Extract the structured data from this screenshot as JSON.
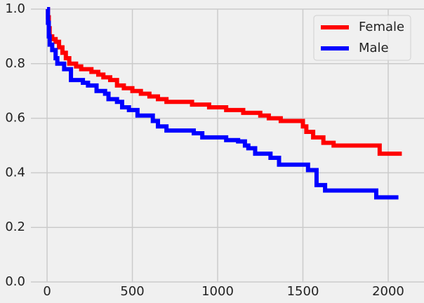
{
  "chart_data": {
    "type": "line",
    "step": "post",
    "legend": "upper right",
    "grid": true,
    "xlim": [
      -95,
      2210
    ],
    "ylim": [
      0,
      1
    ],
    "xticks": [
      0,
      500,
      1000,
      1500,
      2000
    ],
    "yticks": [
      {
        "value": 0,
        "label": "0.0"
      },
      {
        "value": 0.2,
        "label": "0.2"
      },
      {
        "value": 0.4,
        "label": "0.4"
      },
      {
        "value": 0.6,
        "label": "0.6"
      },
      {
        "value": 0.8,
        "label": "0.8"
      },
      {
        "value": 1,
        "label": "1.0"
      }
    ],
    "series": [
      {
        "name": "Female",
        "color": "#ff0000",
        "x": [
          0,
          5,
          10,
          15,
          30,
          50,
          70,
          90,
          110,
          130,
          170,
          200,
          260,
          300,
          330,
          370,
          410,
          450,
          500,
          550,
          600,
          650,
          700,
          850,
          950,
          1050,
          1150,
          1250,
          1300,
          1370,
          1500,
          1520,
          1560,
          1620,
          1680,
          1950,
          2080
        ],
        "values": [
          1.0,
          0.97,
          0.93,
          0.9,
          0.89,
          0.88,
          0.86,
          0.84,
          0.82,
          0.8,
          0.79,
          0.78,
          0.77,
          0.76,
          0.75,
          0.74,
          0.72,
          0.71,
          0.7,
          0.69,
          0.68,
          0.67,
          0.66,
          0.65,
          0.64,
          0.63,
          0.62,
          0.61,
          0.6,
          0.59,
          0.57,
          0.55,
          0.53,
          0.51,
          0.5,
          0.47,
          0.47
        ]
      },
      {
        "name": "Male",
        "color": "#0000ff",
        "x": [
          0,
          5,
          10,
          15,
          30,
          50,
          60,
          100,
          140,
          210,
          240,
          290,
          340,
          360,
          410,
          440,
          480,
          530,
          620,
          650,
          700,
          860,
          910,
          1050,
          1120,
          1160,
          1180,
          1220,
          1310,
          1360,
          1530,
          1580,
          1630,
          1930,
          2060
        ],
        "values": [
          1.0,
          0.95,
          0.9,
          0.87,
          0.85,
          0.82,
          0.8,
          0.78,
          0.74,
          0.73,
          0.72,
          0.7,
          0.69,
          0.67,
          0.66,
          0.64,
          0.63,
          0.61,
          0.59,
          0.57,
          0.555,
          0.545,
          0.53,
          0.52,
          0.515,
          0.5,
          0.49,
          0.47,
          0.455,
          0.43,
          0.41,
          0.355,
          0.335,
          0.31,
          0.31
        ]
      }
    ]
  }
}
